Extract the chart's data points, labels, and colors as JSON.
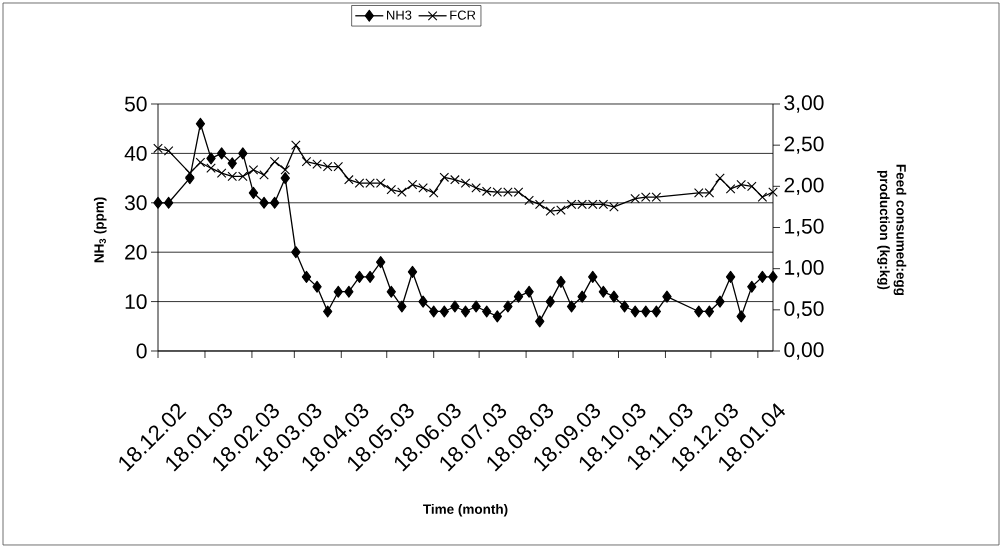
{
  "chart_data": {
    "type": "line",
    "xlabel": "Time (month)",
    "ylabel": "NH$_{3}$ (ppm)",
    "y2label": "Feed consumed:egg production (kg:kg)",
    "xlim": [
      "2002-12-18",
      "2004-01-28"
    ],
    "xticks": [
      {
        "value": "2002-12-18",
        "label": "18.12.02"
      },
      {
        "value": "2003-01-18",
        "label": "18.01.03"
      },
      {
        "value": "2003-02-18",
        "label": "18.02.03"
      },
      {
        "value": "2003-03-18",
        "label": "18.03.03"
      },
      {
        "value": "2003-04-18",
        "label": "18.04.03"
      },
      {
        "value": "2003-05-18",
        "label": "18.05.03"
      },
      {
        "value": "2003-06-18",
        "label": "18.06.03"
      },
      {
        "value": "2003-07-18",
        "label": "18.07.03"
      },
      {
        "value": "2003-08-18",
        "label": "18.08.03"
      },
      {
        "value": "2003-09-18",
        "label": "18.09.03"
      },
      {
        "value": "2003-10-18",
        "label": "18.10.03"
      },
      {
        "value": "2003-11-18",
        "label": "18.11.03"
      },
      {
        "value": "2003-12-18",
        "label": "18.12.03"
      },
      {
        "value": "2004-01-18",
        "label": "18.01.04"
      }
    ],
    "ylim": [
      0,
      50
    ],
    "yticks": [
      0,
      10,
      20,
      30,
      40,
      50
    ],
    "y2lim": [
      0,
      3
    ],
    "y2ticks": [
      {
        "value": 0,
        "label": "0,00"
      },
      {
        "value": 0.5,
        "label": "0,50"
      },
      {
        "value": 1,
        "label": "1,00"
      },
      {
        "value": 1.5,
        "label": "1,50"
      },
      {
        "value": 2,
        "label": "2,00"
      },
      {
        "value": 2.5,
        "label": "2,50"
      },
      {
        "value": 3,
        "label": "3,00"
      }
    ],
    "grid": "y",
    "legend": "top",
    "series": [
      {
        "name": "NH3",
        "color": "#000000",
        "marker": "diamond",
        "x": [
          "2002-12-18",
          "2002-12-25",
          "2003-01-08",
          "2003-01-15",
          "2003-01-22",
          "2003-01-29",
          "2003-02-05",
          "2003-02-12",
          "2003-02-19",
          "2003-02-26",
          "2003-03-05",
          "2003-03-12",
          "2003-03-19",
          "2003-03-26",
          "2003-04-02",
          "2003-04-09",
          "2003-04-16",
          "2003-04-23",
          "2003-04-30",
          "2003-05-07",
          "2003-05-14",
          "2003-05-21",
          "2003-05-28",
          "2003-06-04",
          "2003-06-11",
          "2003-06-18",
          "2003-06-25",
          "2003-07-02",
          "2003-07-09",
          "2003-07-16",
          "2003-07-23",
          "2003-07-30",
          "2003-08-06",
          "2003-08-13",
          "2003-08-20",
          "2003-08-27",
          "2003-09-03",
          "2003-09-10",
          "2003-09-17",
          "2003-09-24",
          "2003-10-01",
          "2003-10-08",
          "2003-10-15",
          "2003-10-22",
          "2003-10-29",
          "2003-11-05",
          "2003-11-12",
          "2003-11-19",
          "2003-12-10",
          "2003-12-17",
          "2003-12-24",
          "2003-12-31",
          "2004-01-07",
          "2004-01-14",
          "2004-01-21",
          "2004-01-28"
        ],
        "values": [
          30,
          30,
          35,
          46,
          39,
          40,
          38,
          40,
          32,
          30,
          30,
          35,
          20,
          15,
          13,
          8,
          12,
          12,
          15,
          15,
          18,
          12,
          9,
          16,
          10,
          8,
          8,
          9,
          8,
          9,
          8,
          7,
          9,
          11,
          12,
          6,
          10,
          14,
          9,
          11,
          15,
          12,
          11,
          9,
          8,
          8,
          8,
          11,
          8,
          8,
          10,
          15,
          7,
          13,
          15,
          15
        ]
      },
      {
        "name": "FCR",
        "color": "#000000",
        "marker": "cross",
        "axis": "y2",
        "x": [
          "2002-12-18",
          "2002-12-25",
          "2003-01-08",
          "2003-01-15",
          "2003-01-22",
          "2003-01-29",
          "2003-02-05",
          "2003-02-12",
          "2003-02-19",
          "2003-02-26",
          "2003-03-05",
          "2003-03-12",
          "2003-03-19",
          "2003-03-26",
          "2003-04-02",
          "2003-04-09",
          "2003-04-16",
          "2003-04-23",
          "2003-04-30",
          "2003-05-07",
          "2003-05-14",
          "2003-05-21",
          "2003-05-28",
          "2003-06-04",
          "2003-06-11",
          "2003-06-18",
          "2003-06-25",
          "2003-07-02",
          "2003-07-09",
          "2003-07-16",
          "2003-07-23",
          "2003-07-30",
          "2003-08-06",
          "2003-08-13",
          "2003-08-20",
          "2003-08-27",
          "2003-09-03",
          "2003-09-10",
          "2003-09-17",
          "2003-09-24",
          "2003-10-01",
          "2003-10-08",
          "2003-10-15",
          "2003-10-29",
          "2003-11-05",
          "2003-11-12",
          "2003-12-10",
          "2003-12-17",
          "2003-12-24",
          "2003-12-31",
          "2004-01-07",
          "2004-01-14",
          "2004-01-21",
          "2004-01-28"
        ],
        "values": [
          2.46,
          2.43,
          2.16,
          2.29,
          2.22,
          2.16,
          2.12,
          2.12,
          2.2,
          2.14,
          2.3,
          2.2,
          2.5,
          2.3,
          2.27,
          2.24,
          2.24,
          2.08,
          2.04,
          2.04,
          2.04,
          1.96,
          1.93,
          2.02,
          1.98,
          1.92,
          2.11,
          2.08,
          2.04,
          1.98,
          1.94,
          1.93,
          1.93,
          1.93,
          1.83,
          1.78,
          1.7,
          1.71,
          1.78,
          1.78,
          1.78,
          1.78,
          1.75,
          1.85,
          1.87,
          1.87,
          1.92,
          1.92,
          2.1,
          1.97,
          2.02,
          2.0,
          1.87,
          1.93
        ]
      }
    ]
  }
}
